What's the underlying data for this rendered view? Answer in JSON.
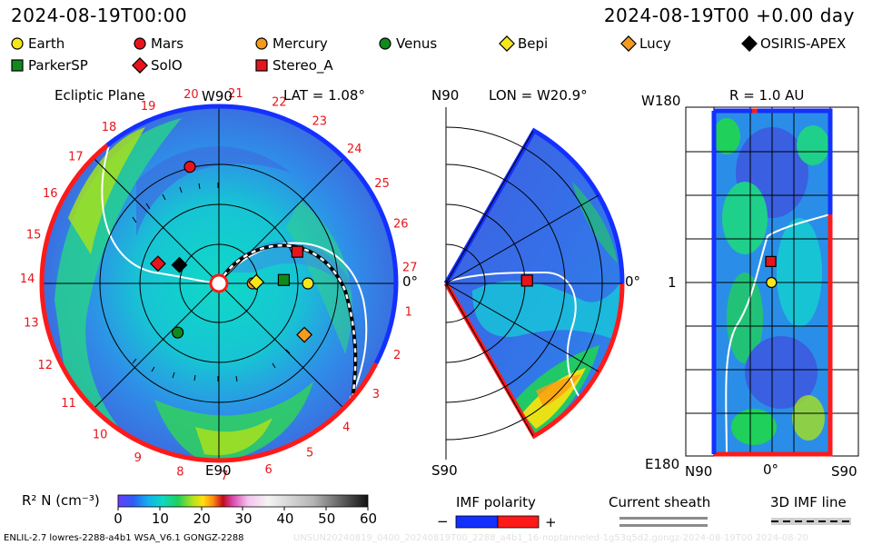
{
  "header": {
    "left_timestamp": "2024-08-19T00:00",
    "right_timestamp": "2024-08-19T00 +0.00 day"
  },
  "legend": [
    {
      "name": "Earth",
      "marker": "circle",
      "color": "#f6e71a"
    },
    {
      "name": "Mars",
      "marker": "circle",
      "color": "#e8141c"
    },
    {
      "name": "Mercury",
      "marker": "circle",
      "color": "#f39a1f"
    },
    {
      "name": "Venus",
      "marker": "circle",
      "color": "#108a1c"
    },
    {
      "name": "Bepi",
      "marker": "diamond",
      "color": "#f6e71a"
    },
    {
      "name": "Lucy",
      "marker": "diamond",
      "color": "#f39a1f"
    },
    {
      "name": "OSIRIS-APEX",
      "marker": "diamond",
      "color": "#000000"
    },
    {
      "name": "ParkerSP",
      "marker": "square",
      "color": "#108a1c"
    },
    {
      "name": "SolO",
      "marker": "diamond",
      "color": "#e8141c"
    },
    {
      "name": "Stereo_A",
      "marker": "square",
      "color": "#e8141c"
    }
  ],
  "panels": {
    "ecliptic": {
      "title": "Ecliptic Plane",
      "lat_label": "LAT = 1.08°",
      "top_label": "W90",
      "bottom_label": "E90",
      "right_label": "0°",
      "sector_numbers": [
        "1",
        "2",
        "3",
        "4",
        "5",
        "6",
        "7",
        "8",
        "9",
        "10",
        "11",
        "12",
        "13",
        "14",
        "15",
        "16",
        "17",
        "18",
        "19",
        "20",
        "21",
        "22",
        "23",
        "24",
        "25",
        "26",
        "27"
      ]
    },
    "meridional": {
      "top_left_label": "N90",
      "lon_label": "LON = W20.9°",
      "bottom_left_label": "S90",
      "right_label": "0°"
    },
    "radial": {
      "r_label": "R = 1.0 AU",
      "top_left_label": "W180",
      "mid_left_label": "1",
      "bottom_left_label": "E180",
      "x_labels": [
        "N90",
        "0°",
        "S90"
      ]
    }
  },
  "colorbar": {
    "label": "R² N (cm⁻³)",
    "ticks": [
      "0",
      "10",
      "20",
      "30",
      "40",
      "50",
      "60"
    ]
  },
  "imf_polarity": {
    "label": "IMF polarity",
    "minus": "−",
    "plus": "+"
  },
  "current_sheath": {
    "label": "Current sheath"
  },
  "imf_line": {
    "label": "3D IMF line"
  },
  "footer": {
    "left_text": "ENLIL-2.7 lowres-2288-a4b1 WSA_V6.1 GONGZ-2288",
    "right_text": "UNSUN20240819_0400_20240819T00_2288_a4b1_16-noptanneled-1g53q5d2.gongz-2024-08-19T00  2024-08-20"
  },
  "chart_data": {
    "type": "heatmap",
    "quantity": "R² N (cm⁻³)",
    "color_range": [
      0,
      60
    ],
    "time": "2024-08-19T00:00",
    "elapsed": "+0.00 day",
    "ecliptic_plane_positions_AU_deg": [
      {
        "name": "Earth",
        "r": 1.0,
        "lon_deg": 0
      },
      {
        "name": "Mars",
        "r": 1.35,
        "lon_deg": 104
      },
      {
        "name": "Mercury",
        "r": 0.38,
        "lon_deg": 0
      },
      {
        "name": "Venus",
        "r": 0.72,
        "lon_deg": 230
      },
      {
        "name": "Bepi",
        "r": 0.42,
        "lon_deg": 2
      },
      {
        "name": "Lucy",
        "r": 1.12,
        "lon_deg": -31
      },
      {
        "name": "OSIRIS-APEX",
        "r": 0.49,
        "lon_deg": 155
      },
      {
        "name": "ParkerSP",
        "r": 0.73,
        "lon_deg": 3
      },
      {
        "name": "SolO",
        "r": 0.72,
        "lon_deg": 162
      },
      {
        "name": "Stereo_A",
        "r": 0.95,
        "lon_deg": 22
      }
    ],
    "meridional_positions": [
      {
        "name": "Stereo_A",
        "r": 0.95,
        "lat_deg": 2
      }
    ],
    "radial_map_positions": [
      {
        "name": "Stereo_A",
        "lon_deg": 22,
        "lat_deg": 2
      },
      {
        "name": "Earth",
        "lon_deg": 0,
        "lat_deg": 1
      }
    ]
  }
}
